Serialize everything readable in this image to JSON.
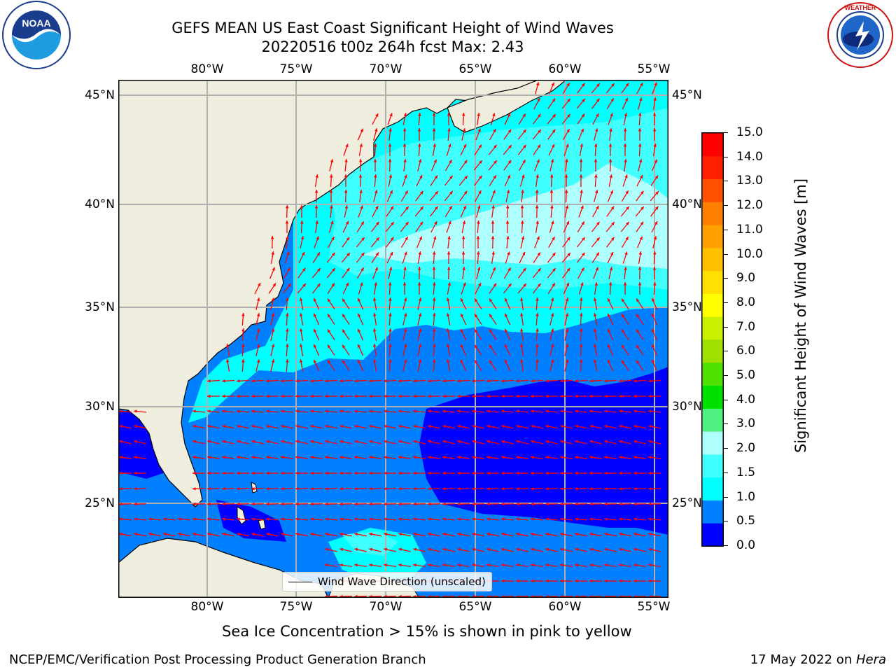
{
  "title": {
    "line1": "GEFS MEAN US East Coast Significant Height of Wind Waves",
    "line2": "20220516 t00z 264h fcst   Max: 2.43"
  },
  "map": {
    "lon_ticks": [
      "80°W",
      "75°W",
      "70°W",
      "65°W",
      "60°W",
      "55°W"
    ],
    "lat_ticks": [
      "45°N",
      "40°N",
      "35°N",
      "30°N",
      "25°N"
    ],
    "legend_label": "Wind Wave Direction (unscaled)",
    "subtitle": "Sea Ice Concentration > 15% is shown in pink to yellow",
    "colors": {
      "land": "#efedde",
      "arrow": "#ff0000",
      "grid": "#b0b0b0"
    }
  },
  "colorbar": {
    "label": "Significant Height of Wind Waves [m]",
    "ticks": [
      "15.0",
      "14.0",
      "13.0",
      "12.0",
      "11.0",
      "10.0",
      "9.0",
      "8.0",
      "7.0",
      "6.0",
      "5.0",
      "4.0",
      "3.0",
      "2.0",
      "1.5",
      "1.0",
      "0.5",
      "0.0"
    ],
    "colors": [
      "#0000ff",
      "#0080ff",
      "#00ffff",
      "#40ffff",
      "#b0ffff",
      "#50f080",
      "#00e000",
      "#50e000",
      "#a0e000",
      "#c8f000",
      "#ffff00",
      "#ffe000",
      "#ffc000",
      "#ffa000",
      "#ff8000",
      "#ff5000",
      "#ff2000",
      "#ff0000"
    ]
  },
  "footer": {
    "left": "NCEP/EMC/Verification Post Processing Product Generation Branch",
    "right_prefix": "17 May 2022 on ",
    "right_italic": "Hera"
  },
  "logos": {
    "left_text": "NOAA",
    "left_ring": "NATIONAL OCEANIC AND ATMOSPHERIC ADMINISTRATION • U.S. DEPARTMENT OF COMMERCE",
    "right_ring": "NATIONAL WEATHER SERVICE"
  }
}
